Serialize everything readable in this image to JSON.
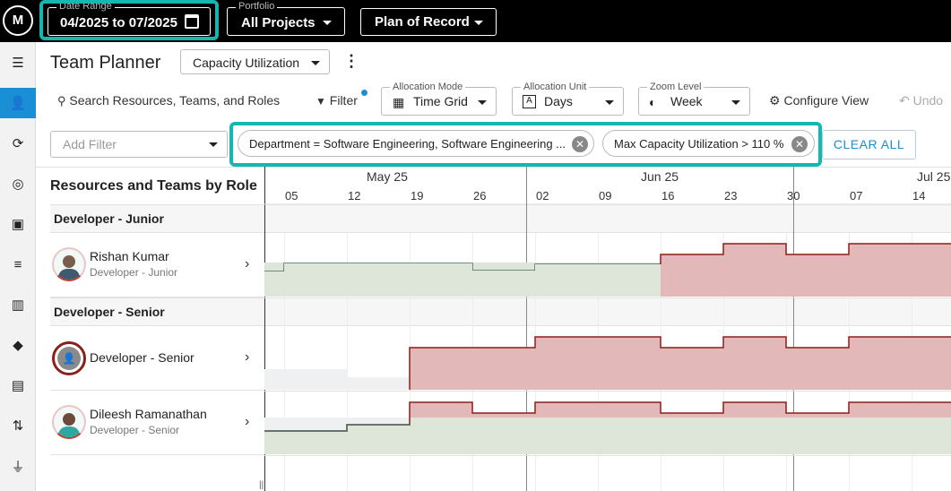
{
  "topbar": {
    "date_range": {
      "label": "Date Range",
      "value": "04/2025 to 07/2025"
    },
    "portfolio": {
      "label": "Portfolio",
      "value": "All Projects"
    },
    "plan": {
      "value": "Plan of Record"
    }
  },
  "header": {
    "title": "Team Planner",
    "view_select": "Capacity Utilization",
    "more_icon": "more-vertical-icon"
  },
  "toolbar": {
    "search_label": "Search Resources, Teams, and Roles",
    "filter_label": "Filter",
    "allocation_mode": {
      "label": "Allocation Mode",
      "value": "Time Grid"
    },
    "allocation_unit": {
      "label": "Allocation Unit",
      "value": "Days"
    },
    "zoom_level": {
      "label": "Zoom Level",
      "value": "Week"
    },
    "configure_view": "Configure View",
    "undo": "Undo"
  },
  "filters": {
    "add_filter_placeholder": "Add Filter",
    "chips": [
      {
        "text": "Department = Software Engineering, Software Engineering ..."
      },
      {
        "text": "Max Capacity Utilization > 110 %"
      }
    ],
    "clear_all": "CLEAR ALL"
  },
  "grid": {
    "heading": "Resources and Teams by Role",
    "months": [
      "May 25",
      "Jun 25",
      "Jul 25"
    ],
    "weeks": [
      "05",
      "12",
      "19",
      "26",
      "02",
      "09",
      "16",
      "23",
      "30",
      "07",
      "14"
    ],
    "groups": [
      {
        "role": "Developer - Junior",
        "resources": [
          {
            "name": "Rishan Kumar",
            "role": "Developer - Junior"
          }
        ]
      },
      {
        "role": "Developer - Senior",
        "resources": [
          {
            "name": "Developer - Senior",
            "role": ""
          },
          {
            "name": "Dileesh Ramanathan",
            "role": "Developer - Senior"
          }
        ]
      }
    ]
  },
  "colors": {
    "accent": "#1a8fd6",
    "highlight": "#14b8b0",
    "over_fill": "#e3b8b8",
    "over_line": "#8b1f1a",
    "under_fill": "#dde6d8",
    "under_line": "#4f6e66"
  },
  "nav_icons": [
    "menu-icon",
    "team-planner-icon",
    "refresh-icon",
    "target-icon",
    "badge-icon",
    "list-icon",
    "board-icon",
    "routing-icon",
    "document-icon",
    "swap-icon",
    "plug-icon"
  ]
}
